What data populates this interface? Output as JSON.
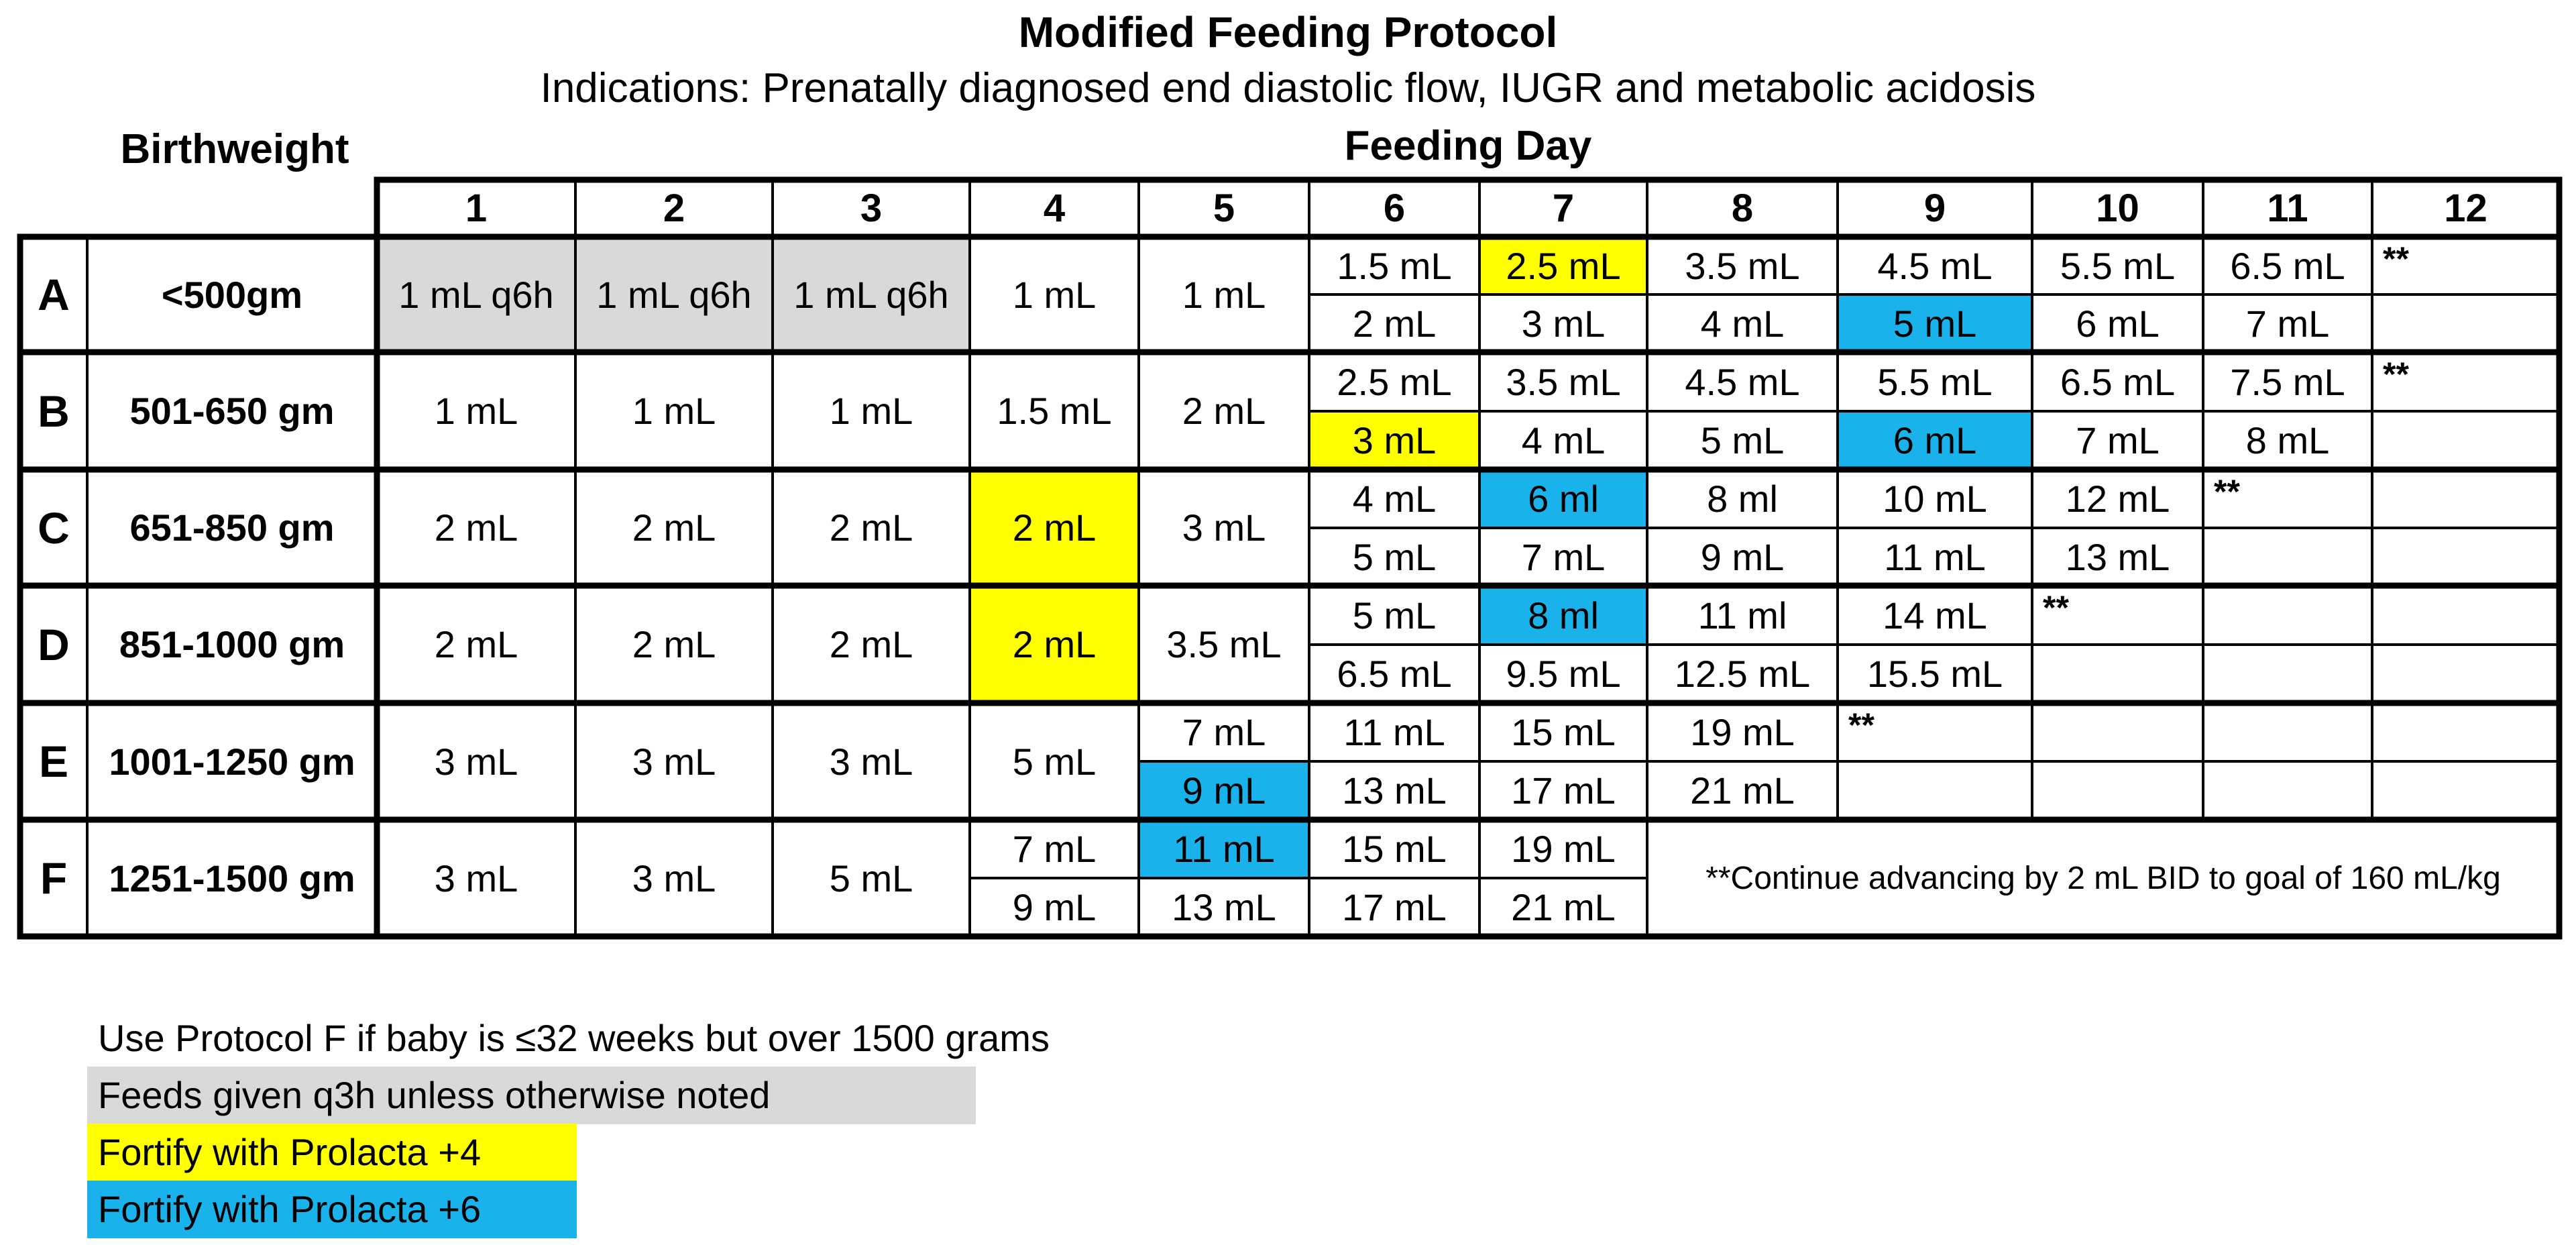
{
  "title": "Modified Feeding Protocol",
  "subtitle": "Indications: Prenatally diagnosed end diastolic flow, IUGR and metabolic acidosis",
  "birthweight_label": "Birthweight",
  "feeding_day_label": "Feeding Day",
  "colors": {
    "gray": "#d9d9d9",
    "yellow": "#ffff00",
    "blue": "#1ab2ea",
    "border": "#000000"
  },
  "days": [
    "1",
    "2",
    "3",
    "4",
    "5",
    "6",
    "7",
    "8",
    "9",
    "10",
    "11",
    "12"
  ],
  "rows": [
    {
      "letter": "A",
      "birthweight": "<500gm",
      "single": [
        {
          "v": "1 mL q6h",
          "hl": "gray"
        },
        {
          "v": "1 mL q6h",
          "hl": "gray"
        },
        {
          "v": "1 mL q6h",
          "hl": "gray"
        },
        {
          "v": "1 mL"
        },
        {
          "v": "1 mL"
        }
      ],
      "top": [
        {
          "v": "1.5 mL"
        },
        {
          "v": "2.5 mL",
          "hl": "yellow"
        },
        {
          "v": "3.5 mL"
        },
        {
          "v": "4.5 mL"
        },
        {
          "v": "5.5 mL"
        },
        {
          "v": "6.5 mL"
        },
        {
          "v": "**",
          "stars": true
        }
      ],
      "bottom": [
        {
          "v": "2 mL"
        },
        {
          "v": "3 mL"
        },
        {
          "v": "4 mL"
        },
        {
          "v": "5 mL",
          "hl": "blue"
        },
        {
          "v": "6 mL"
        },
        {
          "v": "7 mL"
        },
        {
          "v": ""
        }
      ]
    },
    {
      "letter": "B",
      "birthweight": "501-650 gm",
      "single": [
        {
          "v": "1 mL"
        },
        {
          "v": "1 mL"
        },
        {
          "v": "1 mL"
        },
        {
          "v": "1.5 mL"
        },
        {
          "v": "2 mL"
        }
      ],
      "top": [
        {
          "v": "2.5 mL"
        },
        {
          "v": "3.5 mL"
        },
        {
          "v": "4.5 mL"
        },
        {
          "v": "5.5 mL"
        },
        {
          "v": "6.5 mL"
        },
        {
          "v": "7.5 mL"
        },
        {
          "v": "**",
          "stars": true
        }
      ],
      "bottom": [
        {
          "v": "3 mL",
          "hl": "yellow"
        },
        {
          "v": "4 mL"
        },
        {
          "v": "5 mL"
        },
        {
          "v": "6 mL",
          "hl": "blue"
        },
        {
          "v": "7 mL"
        },
        {
          "v": "8 mL"
        },
        {
          "v": ""
        }
      ]
    },
    {
      "letter": "C",
      "birthweight": "651-850 gm",
      "single": [
        {
          "v": "2 mL"
        },
        {
          "v": "2 mL"
        },
        {
          "v": "2 mL"
        },
        {
          "v": "2 mL",
          "hl": "yellow"
        },
        {
          "v": "3 mL"
        }
      ],
      "top": [
        {
          "v": "4 mL"
        },
        {
          "v": "6 ml",
          "hl": "blue"
        },
        {
          "v": "8 ml"
        },
        {
          "v": "10 mL"
        },
        {
          "v": "12 mL"
        },
        {
          "v": "**",
          "stars": true
        },
        {
          "v": ""
        }
      ],
      "bottom": [
        {
          "v": "5 mL"
        },
        {
          "v": "7 mL"
        },
        {
          "v": "9 mL"
        },
        {
          "v": "11 mL"
        },
        {
          "v": "13 mL"
        },
        {
          "v": ""
        },
        {
          "v": ""
        }
      ]
    },
    {
      "letter": "D",
      "birthweight": "851-1000 gm",
      "single": [
        {
          "v": "2 mL"
        },
        {
          "v": "2 mL"
        },
        {
          "v": "2 mL"
        },
        {
          "v": "2 mL",
          "hl": "yellow"
        },
        {
          "v": "3.5 mL"
        }
      ],
      "top": [
        {
          "v": "5 mL"
        },
        {
          "v": "8 ml",
          "hl": "blue"
        },
        {
          "v": "11 ml"
        },
        {
          "v": "14 mL"
        },
        {
          "v": "**",
          "stars": true
        },
        {
          "v": ""
        },
        {
          "v": ""
        }
      ],
      "bottom": [
        {
          "v": "6.5 mL"
        },
        {
          "v": "9.5 mL"
        },
        {
          "v": "12.5 mL"
        },
        {
          "v": "15.5 mL"
        },
        {
          "v": ""
        },
        {
          "v": ""
        },
        {
          "v": ""
        }
      ]
    },
    {
      "letter": "E",
      "birthweight": "1001-1250 gm",
      "single": [
        {
          "v": "3 mL"
        },
        {
          "v": "3 mL"
        },
        {
          "v": "3 mL"
        },
        {
          "v": "5 mL"
        }
      ],
      "top": [
        {
          "v": "7 mL"
        },
        {
          "v": "11 mL"
        },
        {
          "v": "15 mL"
        },
        {
          "v": "19 mL"
        },
        {
          "v": "**",
          "stars": true
        },
        {
          "v": ""
        },
        {
          "v": ""
        },
        {
          "v": ""
        }
      ],
      "bottom": [
        {
          "v": "9 mL",
          "hl": "blue"
        },
        {
          "v": "13 mL"
        },
        {
          "v": "17 mL"
        },
        {
          "v": "21 mL"
        },
        {
          "v": ""
        },
        {
          "v": ""
        },
        {
          "v": ""
        },
        {
          "v": ""
        }
      ]
    },
    {
      "letter": "F",
      "birthweight": "1251-1500 gm",
      "single": [
        {
          "v": "3 mL"
        },
        {
          "v": "3 mL"
        },
        {
          "v": "5 mL"
        }
      ],
      "top": [
        {
          "v": "7 mL"
        },
        {
          "v": "11 mL",
          "hl": "blue"
        },
        {
          "v": "15 mL"
        },
        {
          "v": "19 mL"
        }
      ],
      "bottom": [
        {
          "v": "9 mL"
        },
        {
          "v": "13 mL"
        },
        {
          "v": "17 mL"
        },
        {
          "v": "21 mL"
        }
      ],
      "note": "**Continue advancing by 2 mL BID to goal of 160 mL/kg"
    }
  ],
  "legend": [
    {
      "text": "Use Protocol F if baby is ≤32 weeks but over 1500 grams",
      "hl": ""
    },
    {
      "text": "Feeds given q3h unless otherwise noted",
      "hl": "gray"
    },
    {
      "text": "Fortify with Prolacta +4",
      "hl": "yellow"
    },
    {
      "text": "Fortify with Prolacta +6",
      "hl": "blue"
    }
  ]
}
